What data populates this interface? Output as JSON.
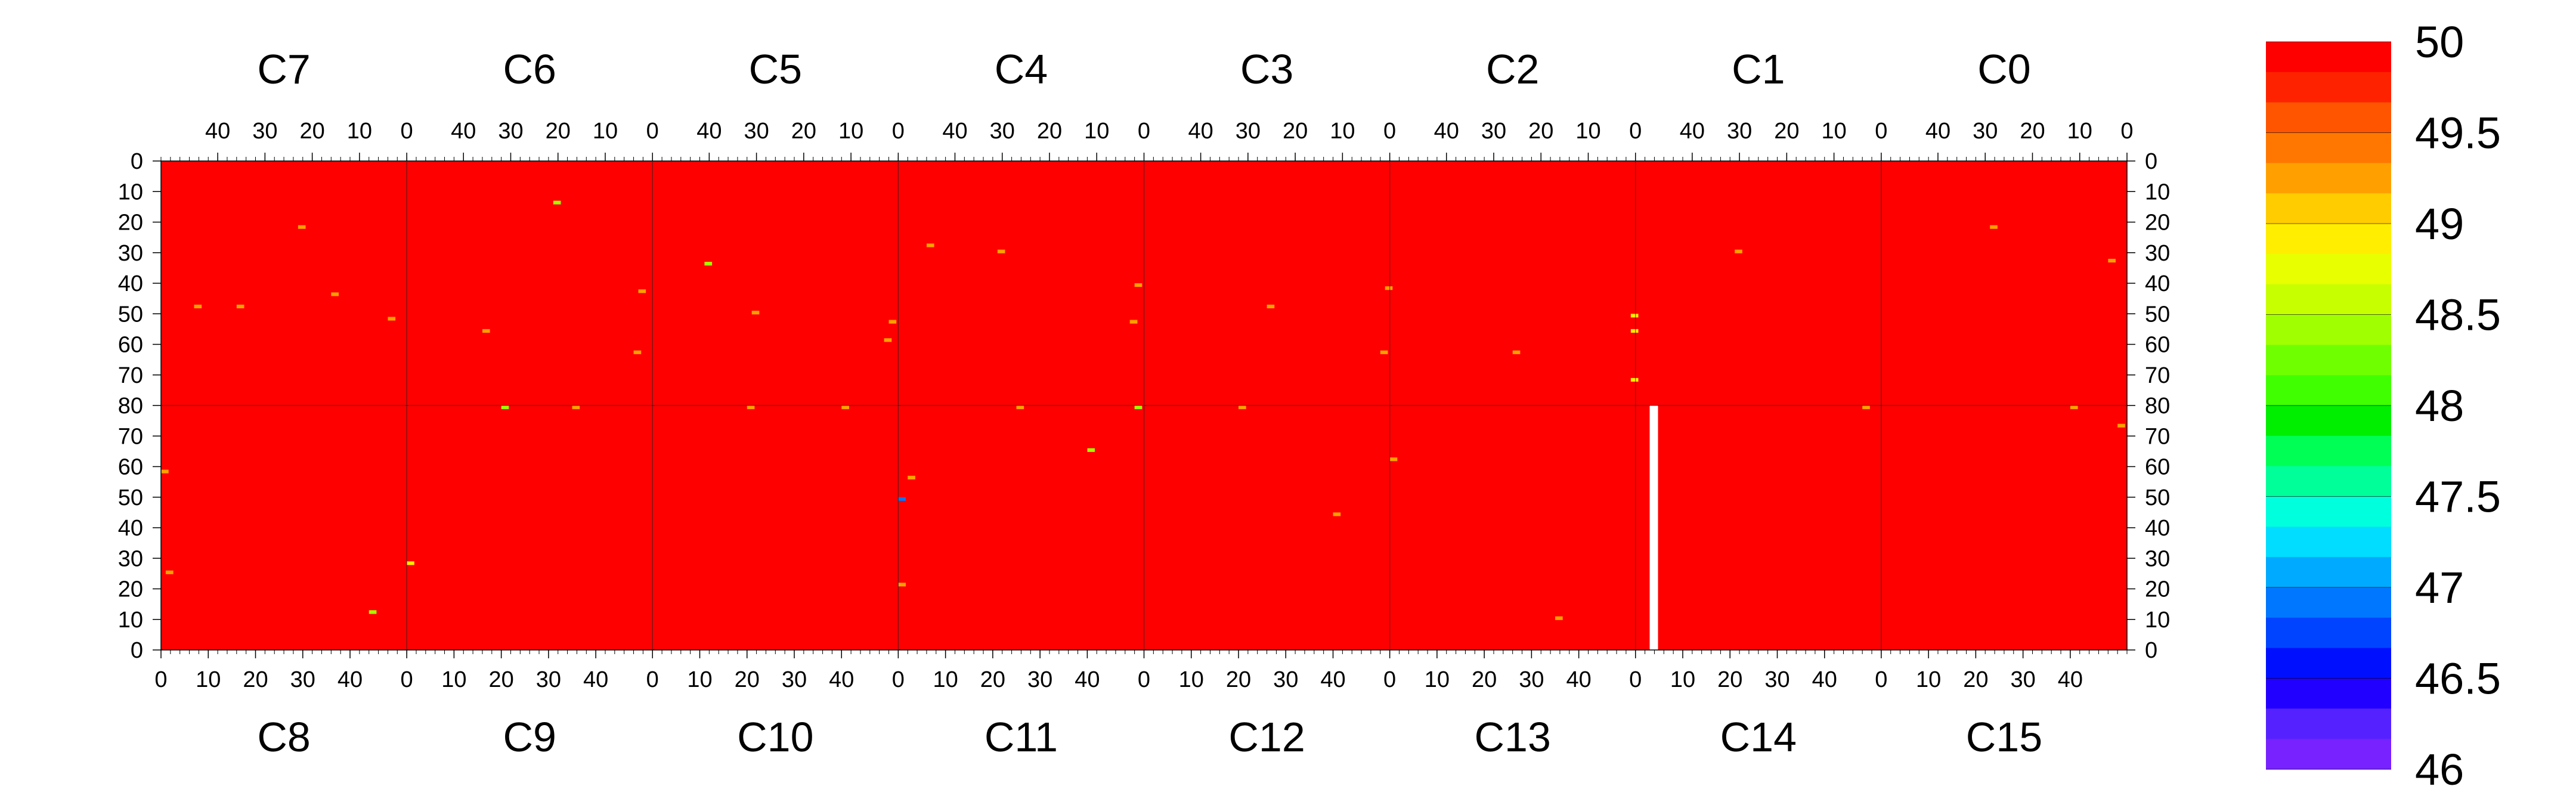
{
  "chart_data": {
    "type": "heatmap",
    "title": "",
    "xlabel": "",
    "ylabel": "",
    "grid": false,
    "chips_top": [
      "C7",
      "C6",
      "C5",
      "C4",
      "C3",
      "C2",
      "C1",
      "C0"
    ],
    "chips_bottom": [
      "C8",
      "C9",
      "C10",
      "C11",
      "C12",
      "C13",
      "C14",
      "C15"
    ],
    "top_x_ticks": [
      "40",
      "30",
      "20",
      "10",
      "0"
    ],
    "bottom_x_ticks": [
      "0",
      "10",
      "20",
      "30",
      "40"
    ],
    "top_half_y_ticks": [
      "0",
      "10",
      "20",
      "30",
      "40",
      "50",
      "60",
      "70",
      "80"
    ],
    "bottom_half_y_ticks": [
      "70",
      "60",
      "50",
      "40",
      "30",
      "20",
      "10",
      "0"
    ],
    "chip_columns": 52,
    "chip_rows": 80,
    "background_value": 50,
    "zlim": [
      46,
      50
    ],
    "colorbar": {
      "ticks": [
        "50",
        "49.5",
        "49",
        "48.5",
        "48",
        "47.5",
        "47",
        "46.5",
        "46"
      ],
      "levels": 20,
      "colors": [
        "#ff0000",
        "#ff2200",
        "#ff5500",
        "#ff7700",
        "#ffa000",
        "#ffcc00",
        "#ffee00",
        "#e8ff00",
        "#c8ff00",
        "#a0ff00",
        "#70ff00",
        "#40ff00",
        "#00ee00",
        "#00ff55",
        "#00ff99",
        "#00ffdd",
        "#00ddff",
        "#00aaff",
        "#0077ff",
        "#0044ff",
        "#0010ff",
        "#2200ff",
        "#5522ff",
        "#7722ff"
      ]
    },
    "empty_columns": [
      {
        "chip": "C14",
        "col_from": 3,
        "col_to": 3
      }
    ],
    "outliers": [
      {
        "chip": "C7",
        "col": 3,
        "row": 51,
        "value": 49.3
      },
      {
        "chip": "C7",
        "col": 15,
        "row": 43,
        "value": 49.3
      },
      {
        "chip": "C7",
        "col": 22,
        "row": 21,
        "value": 49.3
      },
      {
        "chip": "C7",
        "col": 35,
        "row": 47,
        "value": 49.3
      },
      {
        "chip": "C7",
        "col": 44,
        "row": 47,
        "value": 49.3
      },
      {
        "chip": "C6",
        "col": 2,
        "row": 42,
        "value": 49.3
      },
      {
        "chip": "C6",
        "col": 3,
        "row": 62,
        "value": 49.3
      },
      {
        "chip": "C6",
        "col": 20,
        "row": 13,
        "value": 48.5
      },
      {
        "chip": "C6",
        "col": 35,
        "row": 55,
        "value": 49.3
      },
      {
        "chip": "C5",
        "col": 1,
        "row": 52,
        "value": 49.3
      },
      {
        "chip": "C5",
        "col": 2,
        "row": 58,
        "value": 49.3
      },
      {
        "chip": "C5",
        "col": 30,
        "row": 49,
        "value": 49.3
      },
      {
        "chip": "C5",
        "col": 40,
        "row": 33,
        "value": 48.5
      },
      {
        "chip": "C4",
        "col": 1,
        "row": 40,
        "value": 49.3
      },
      {
        "chip": "C4",
        "col": 2,
        "row": 52,
        "value": 49.3
      },
      {
        "chip": "C4",
        "col": 30,
        "row": 29,
        "value": 49.3
      },
      {
        "chip": "C4",
        "col": 45,
        "row": 27,
        "value": 49.3
      },
      {
        "chip": "C3",
        "col": 1,
        "row": 62,
        "value": 49.3
      },
      {
        "chip": "C3",
        "col": 0,
        "row": 41,
        "value": 49.3
      },
      {
        "chip": "C3",
        "col": 25,
        "row": 47,
        "value": 49.3
      },
      {
        "chip": "C2",
        "col": 0,
        "row": 71,
        "value": 49.0
      },
      {
        "chip": "C2",
        "col": 0,
        "row": 50,
        "value": 49.0
      },
      {
        "chip": "C2",
        "col": 0,
        "row": 55,
        "value": 49.0
      },
      {
        "chip": "C2",
        "col": 25,
        "row": 62,
        "value": 49.3
      },
      {
        "chip": "C1",
        "col": 30,
        "row": 29,
        "value": 49.3
      },
      {
        "chip": "C0",
        "col": 3,
        "row": 32,
        "value": 49.3
      },
      {
        "chip": "C0",
        "col": 28,
        "row": 21,
        "value": 49.3
      },
      {
        "chip": "C8",
        "col": 1,
        "row": 25,
        "value": 49.3
      },
      {
        "chip": "C8",
        "col": 0,
        "row": 58,
        "value": 49.3
      },
      {
        "chip": "C8",
        "col": 44,
        "row": 12,
        "value": 48.5
      },
      {
        "chip": "C9",
        "col": 0,
        "row": 28,
        "value": 49.0
      },
      {
        "chip": "C9",
        "col": 20,
        "row": 79,
        "value": 48.5
      },
      {
        "chip": "C9",
        "col": 35,
        "row": 79,
        "value": 49.3
      },
      {
        "chip": "C10",
        "col": 20,
        "row": 79,
        "value": 49.3
      },
      {
        "chip": "C10",
        "col": 40,
        "row": 79,
        "value": 49.3
      },
      {
        "chip": "C11",
        "col": 0,
        "row": 49,
        "value": 47.0
      },
      {
        "chip": "C11",
        "col": 0,
        "row": 21,
        "value": 49.3
      },
      {
        "chip": "C11",
        "col": 2,
        "row": 56,
        "value": 49.3
      },
      {
        "chip": "C11",
        "col": 25,
        "row": 79,
        "value": 49.3
      },
      {
        "chip": "C11",
        "col": 50,
        "row": 79,
        "value": 48.5
      },
      {
        "chip": "C11",
        "col": 40,
        "row": 65,
        "value": 48.5
      },
      {
        "chip": "C12",
        "col": 20,
        "row": 79,
        "value": 49.3
      },
      {
        "chip": "C12",
        "col": 40,
        "row": 44,
        "value": 49.3
      },
      {
        "chip": "C13",
        "col": 0,
        "row": 62,
        "value": 49.3
      },
      {
        "chip": "C13",
        "col": 35,
        "row": 10,
        "value": 49.3
      },
      {
        "chip": "C14",
        "col": 48,
        "row": 79,
        "value": 49.3
      },
      {
        "chip": "C15",
        "col": 40,
        "row": 79,
        "value": 49.3
      },
      {
        "chip": "C15",
        "col": 50,
        "row": 73,
        "value": 49.3
      }
    ]
  }
}
